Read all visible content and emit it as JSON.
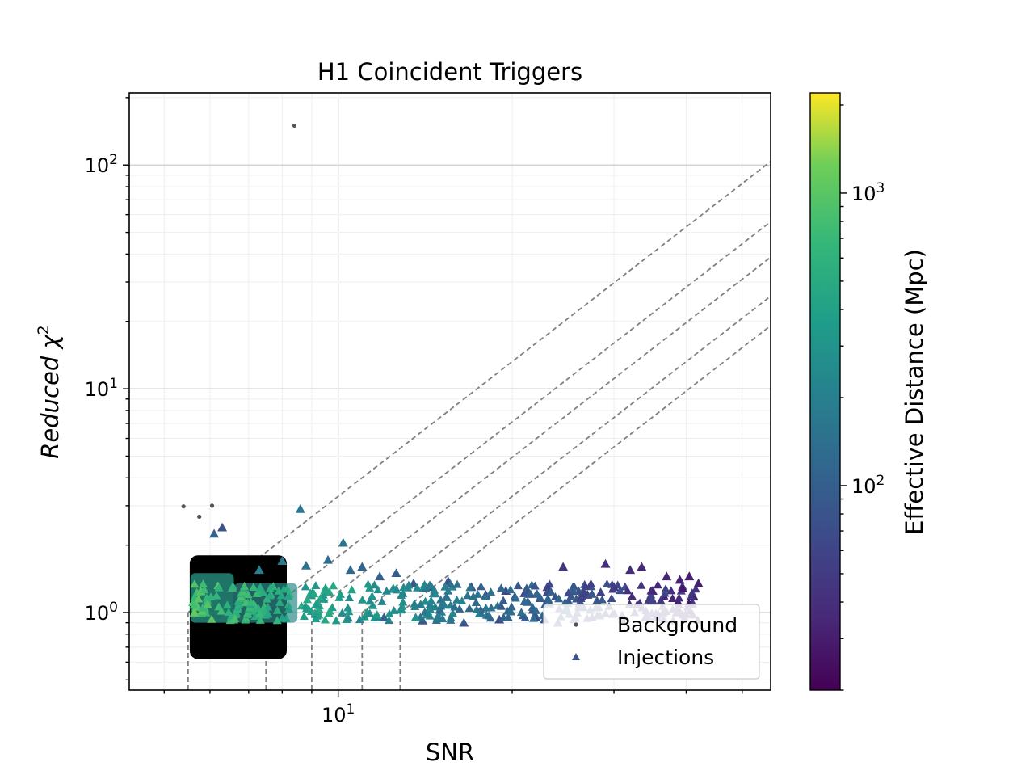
{
  "chart_data": {
    "type": "scatter",
    "title": "H1 Coincident Triggers",
    "xlabel": "SNR",
    "ylabel": "Reduced χ",
    "ylabel_sup": "2",
    "x_scale": "log",
    "y_scale": "log",
    "xlim": [
      4.35,
      56
    ],
    "ylim": [
      0.45,
      210
    ],
    "x_ticks": [
      {
        "base": "10",
        "exp": "1",
        "value": 10
      }
    ],
    "y_ticks": [
      {
        "base": "10",
        "exp": "0",
        "value": 1
      },
      {
        "base": "10",
        "exp": "1",
        "value": 10
      },
      {
        "base": "10",
        "exp": "2",
        "value": 100
      }
    ],
    "grid": true,
    "legend": {
      "position": "lower-right",
      "entries": [
        {
          "label": "Background",
          "marker": "dot",
          "color": "#555555"
        },
        {
          "label": "Injections",
          "marker": "triangle",
          "color": "#3b528b"
        }
      ]
    },
    "colorbar": {
      "label": "Effective Distance (Mpc)",
      "scale": "log",
      "range": [
        20,
        2200
      ],
      "ticks": [
        {
          "base": "10",
          "exp": "2",
          "value": 100
        },
        {
          "base": "10",
          "exp": "3",
          "value": 1000
        }
      ],
      "colormap": "viridis"
    },
    "threshold_lines": {
      "description_free": true,
      "snr_knees": [
        5.5,
        7.5,
        9.0,
        11.0,
        12.8
      ],
      "chisq_at_knee": 1.0,
      "power": 2
    },
    "series": [
      {
        "name": "Background",
        "marker": "dot",
        "color": "#000000",
        "points": [
          [
            5.4,
            2.98
          ],
          [
            5.75,
            2.68
          ],
          [
            6.05,
            3.0
          ],
          [
            8.4,
            150
          ]
        ],
        "bulk_region": {
          "snr_range": [
            5.5,
            8.2
          ],
          "chisq_range": [
            0.62,
            1.8
          ]
        }
      },
      {
        "name": "Injections",
        "marker": "triangle",
        "points": [
          [
            6.3,
            2.4,
            80
          ],
          [
            6.1,
            2.25,
            110
          ],
          [
            8.6,
            2.9,
            160
          ],
          [
            10.2,
            2.05,
            150
          ],
          [
            7.3,
            1.55,
            200
          ],
          [
            8.0,
            1.7,
            180
          ],
          [
            8.8,
            1.62,
            150
          ],
          [
            9.6,
            1.72,
            130
          ],
          [
            10.5,
            1.55,
            120
          ],
          [
            11.0,
            1.6,
            110
          ],
          [
            11.8,
            1.45,
            100
          ],
          [
            12.6,
            1.5,
            95
          ],
          [
            13.5,
            1.35,
            90
          ],
          [
            14.5,
            1.3,
            85
          ],
          [
            15.5,
            1.38,
            80
          ],
          [
            17.0,
            1.3,
            75
          ],
          [
            18.0,
            1.2,
            70
          ],
          [
            19.5,
            1.25,
            68
          ],
          [
            21.0,
            1.22,
            62
          ],
          [
            23.0,
            1.3,
            55
          ],
          [
            24.5,
            1.6,
            45
          ],
          [
            25.5,
            1.25,
            50
          ],
          [
            27.0,
            1.2,
            48
          ],
          [
            29.0,
            1.65,
            40
          ],
          [
            30.0,
            1.3,
            45
          ],
          [
            32.0,
            1.55,
            38
          ],
          [
            33.5,
            1.6,
            36
          ],
          [
            35.0,
            1.25,
            40
          ],
          [
            37.0,
            1.45,
            33
          ],
          [
            39.0,
            1.4,
            32
          ],
          [
            40.5,
            1.45,
            30
          ],
          [
            42.0,
            1.35,
            30
          ],
          [
            12.0,
            0.95,
            100
          ],
          [
            14.0,
            0.92,
            95
          ],
          [
            16.5,
            0.9,
            85
          ],
          [
            19.0,
            0.93,
            70
          ],
          [
            22.0,
            0.95,
            60
          ],
          [
            24.0,
            0.9,
            58
          ],
          [
            27.5,
            0.95,
            50
          ],
          [
            31.0,
            0.97,
            45
          ],
          [
            34.0,
            0.95,
            42
          ],
          [
            36.5,
            1.0,
            40
          ],
          [
            38.5,
            1.0,
            36
          ],
          [
            41.0,
            0.98,
            33
          ]
        ]
      }
    ]
  }
}
